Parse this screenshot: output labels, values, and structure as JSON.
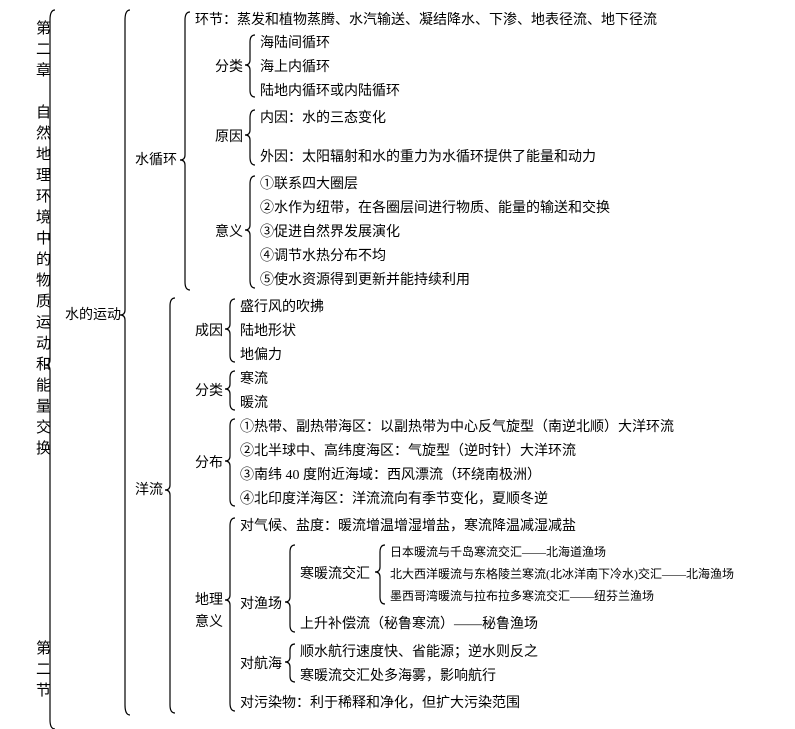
{
  "title_vertical": "第二章　自然地理环境中的物质运动和能量交换",
  "section_marker": "第二节",
  "root": "水的运动",
  "branch1": "水循环",
  "branch2": "洋流",
  "b1_huanjie": "环节：蒸发和植物蒸腾、水汽输送、凝结降水、下渗、地表径流、地下径流",
  "b1_fenlei": "分类",
  "b1_fenlei_1": "海陆间循环",
  "b1_fenlei_2": "海上内循环",
  "b1_fenlei_3": "陆地内循环或内陆循环",
  "b1_yuanyin": "原因",
  "b1_yuanyin_1": "内因：水的三态变化",
  "b1_yuanyin_2": "外因：太阳辐射和水的重力为水循环提供了能量和动力",
  "b1_yiyi": "意义",
  "b1_yiyi_1": "①联系四大圈层",
  "b1_yiyi_2": "②水作为纽带，在各圈层间进行物质、能量的输送和交换",
  "b1_yiyi_3": "③促进自然界发展演化",
  "b1_yiyi_4": "④调节水热分布不均",
  "b1_yiyi_5": "⑤使水资源得到更新并能持续利用",
  "b2_chengyin": "成因",
  "b2_chengyin_1": "盛行风的吹拂",
  "b2_chengyin_2": "陆地形状",
  "b2_chengyin_3": "地偏力",
  "b2_fenlei": "分类",
  "b2_fenlei_1": "寒流",
  "b2_fenlei_2": "暖流",
  "b2_fenbu": "分布",
  "b2_fenbu_1": "①热带、副热带海区：以副热带为中心反气旋型（南逆北顺）大洋环流",
  "b2_fenbu_2": "②北半球中、高纬度海区：气旋型（逆时针）大洋环流",
  "b2_fenbu_3": "③南纬 40 度附近海域：西风漂流（环绕南极洲）",
  "b2_fenbu_4": "④北印度洋海区：洋流流向有季节变化，夏顺冬逆",
  "b2_dili": "地理意义",
  "b2_dili_qihou": "对气候、盐度：暖流增温增湿增盐，寒流降温减湿减盐",
  "b2_dili_yuchang": "对渔场",
  "b2_yc_hanuan": "寒暖流交汇",
  "b2_yc_hn1": "日本暖流与千岛寒流交汇――北海道渔场",
  "b2_yc_hn2": "北大西洋暖流与东格陵兰寒流(北冰洋南下冷水)交汇――北海渔场",
  "b2_yc_hn3": "墨西哥湾暖流与拉布拉多寒流交汇――纽芬兰渔场",
  "b2_yc_shangsheng": "上升补偿流（秘鲁寒流）――秘鲁渔场",
  "b2_dili_hanghai": "对航海",
  "b2_hh_1": "顺水航行速度快、省能源；逆水则反之",
  "b2_hh_2": "寒暖流交汇处多海雾，影响航行",
  "b2_dili_wuran": "对污染物：利于稀释和净化，但扩大污染范围",
  "colors": {
    "bg": "#ffffff",
    "text": "#000000",
    "brace": "#000000"
  }
}
